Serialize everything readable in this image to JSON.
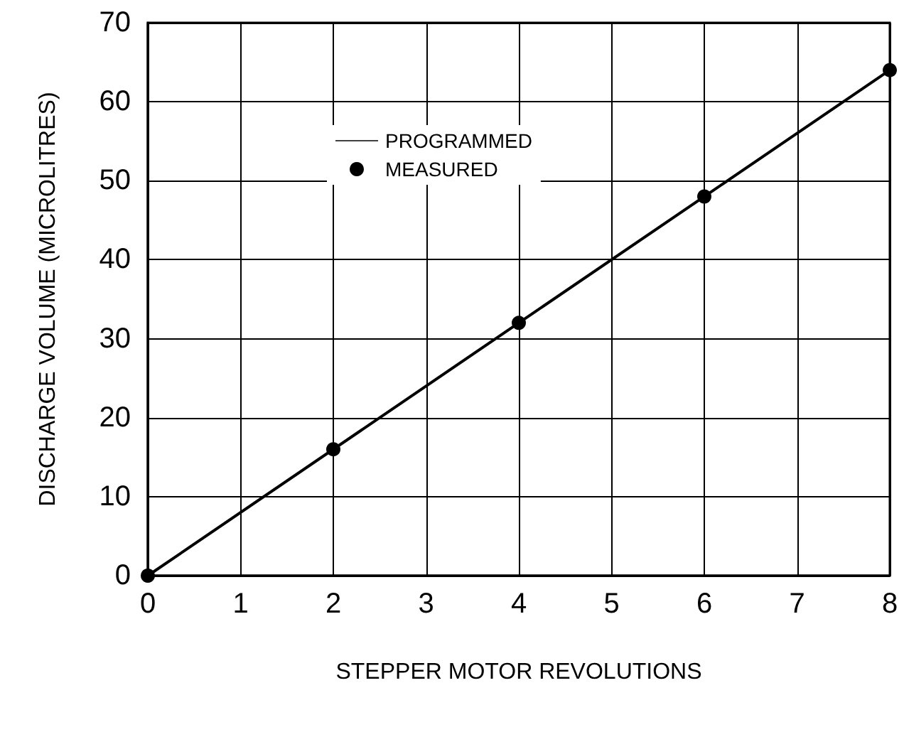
{
  "chart_data": {
    "type": "line",
    "xlabel": "STEPPER MOTOR REVOLUTIONS",
    "ylabel": "DISCHARGE VOLUME (MICROLITRES)",
    "xlim": [
      0,
      8
    ],
    "xticks": [
      0,
      1,
      2,
      3,
      4,
      5,
      6,
      7,
      8
    ],
    "ylim": [
      0,
      70
    ],
    "yticks": [
      0,
      10,
      20,
      30,
      40,
      50,
      60,
      70
    ],
    "grid": true,
    "legend": "top",
    "series": [
      {
        "name": "PROGRAMMED",
        "type": "line",
        "color": "#000000",
        "marker": "none",
        "x": [
          0,
          8
        ],
        "values": [
          0,
          64
        ]
      },
      {
        "name": "MEASURED",
        "type": "scatter",
        "color": "#000000",
        "marker": "circle",
        "x": [
          0,
          2,
          4,
          6,
          8
        ],
        "values": [
          0,
          16,
          32,
          48,
          64
        ]
      }
    ]
  }
}
